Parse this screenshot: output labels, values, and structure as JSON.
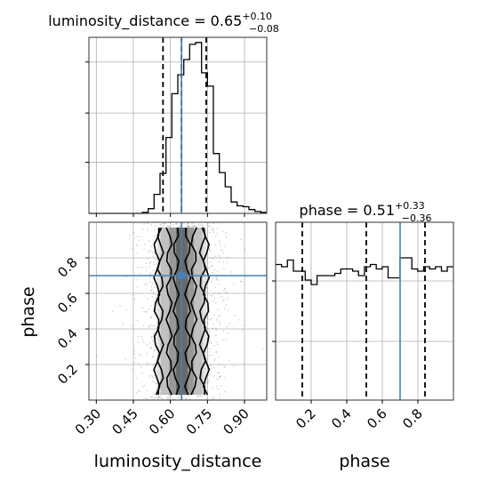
{
  "colors": {
    "truth": "#4682b4",
    "hist": "#000000",
    "grid": "#b0b0b0"
  },
  "chart_data": {
    "type": "corner",
    "parameters": [
      "luminosity_distance",
      "phase"
    ],
    "truths": {
      "luminosity_distance": 0.645,
      "phase": 0.7
    },
    "grid": true,
    "panels": [
      {
        "panel": "luminosity_distance-marginal",
        "type": "histogram-step",
        "title": {
          "base": "luminosity_distance = 0.65",
          "sup": "+0.10",
          "sub": "−0.08"
        },
        "xlim": [
          0.27,
          0.99
        ],
        "bin_width": 0.024,
        "bin_counts": [
          0,
          0,
          0,
          0,
          0,
          0,
          0,
          0,
          0,
          1,
          5,
          20,
          42,
          80,
          126,
          146,
          162,
          178,
          180,
          148,
          134,
          63,
          43,
          28,
          12,
          8,
          7,
          4,
          2,
          1
        ],
        "quantile_lines": [
          0.57,
          0.645,
          0.745
        ],
        "truth": 0.645
      },
      {
        "panel": "phase-marginal",
        "type": "histogram-step",
        "title": {
          "base": "phase = 0.51",
          "sup": "+0.33",
          "sub": "−0.36"
        },
        "xlim": [
          0.0,
          1.0
        ],
        "x_ticks": [
          "0.2",
          "0.4",
          "0.6",
          "0.8"
        ],
        "x_tick_values": [
          0.2,
          0.4,
          0.6,
          0.8
        ],
        "xlabel": "phase",
        "bin_width": 0.0333,
        "bin_counts": [
          61,
          60,
          63,
          58,
          58,
          54,
          52,
          56,
          56,
          56,
          57,
          59,
          59,
          58,
          56,
          60,
          61,
          59,
          60,
          55,
          55,
          64,
          64,
          59,
          58,
          60,
          59,
          60,
          58,
          60
        ],
        "ylim": [
          0,
          80
        ],
        "quantile_lines": [
          0.15,
          0.51,
          0.84
        ],
        "truth": 0.7
      },
      {
        "panel": "joint",
        "type": "2d-density",
        "x": "luminosity_distance",
        "y": "phase",
        "xlim": [
          0.27,
          0.99
        ],
        "ylim": [
          0.0,
          1.0
        ],
        "x_ticks": [
          "0.30",
          "0.45",
          "0.60",
          "0.75",
          "0.90"
        ],
        "x_tick_values": [
          0.3,
          0.45,
          0.6,
          0.75,
          0.9
        ],
        "y_ticks": [
          "0.2",
          "0.4",
          "0.6",
          "0.8"
        ],
        "y_tick_values": [
          0.2,
          0.4,
          0.6,
          0.8
        ],
        "xlabel": "luminosity_distance",
        "ylabel": "phase",
        "contour_x_bounds": [
          [
            0.623,
            0.67
          ],
          [
            0.595,
            0.695
          ],
          [
            0.56,
            0.73
          ],
          [
            0.545,
            0.745
          ]
        ],
        "truth": [
          0.645,
          0.7
        ]
      }
    ]
  }
}
